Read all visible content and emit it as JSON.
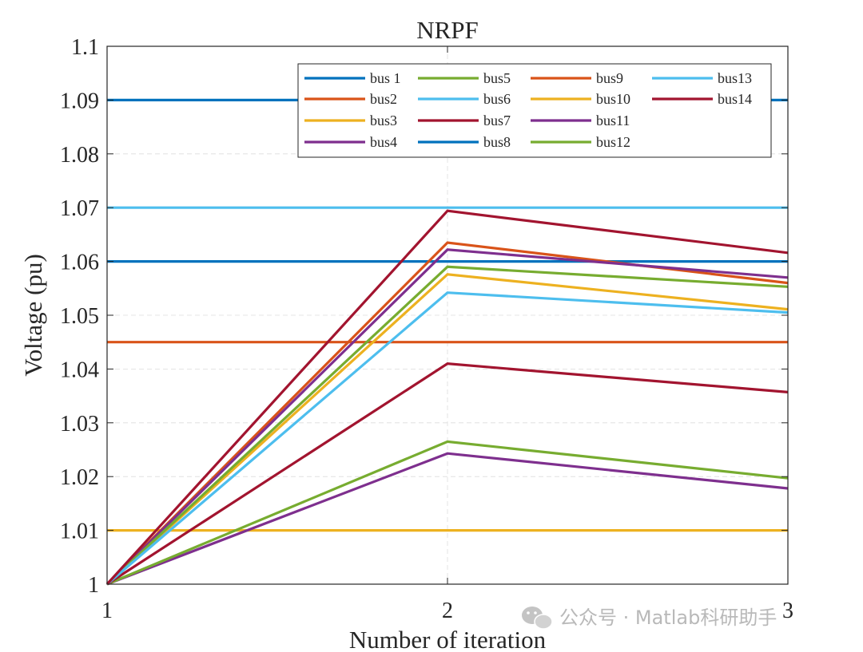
{
  "chart_data": {
    "type": "line",
    "title": "NRPF",
    "xlabel": "Number of iteration",
    "ylabel": "Voltage (pu)",
    "x": [
      1,
      2,
      3
    ],
    "xlim": [
      1,
      3
    ],
    "ylim": [
      1,
      1.1
    ],
    "xticks": [
      "1",
      "2",
      "3"
    ],
    "yticks": [
      "1",
      "1.01",
      "1.02",
      "1.03",
      "1.04",
      "1.05",
      "1.06",
      "1.07",
      "1.08",
      "1.09",
      "1.1"
    ],
    "grid": true,
    "legend_position": "top-right",
    "series": [
      {
        "name": "bus 1",
        "color": "#0072BD",
        "values": [
          1.09,
          1.09,
          1.09
        ]
      },
      {
        "name": "bus2",
        "color": "#D95319",
        "values": [
          1.045,
          1.045,
          1.045
        ]
      },
      {
        "name": "bus3",
        "color": "#EDB120",
        "values": [
          1.01,
          1.01,
          1.01
        ]
      },
      {
        "name": "bus4",
        "color": "#7E2F8E",
        "values": [
          1.0,
          1.0243,
          1.0178
        ]
      },
      {
        "name": "bus5",
        "color": "#77AC30",
        "values": [
          1.0,
          1.0265,
          1.0197
        ]
      },
      {
        "name": "bus6",
        "color": "#4DBEEE",
        "values": [
          1.07,
          1.07,
          1.07
        ]
      },
      {
        "name": "bus7",
        "color": "#A2142F",
        "values": [
          1.0,
          1.041,
          1.0357
        ]
      },
      {
        "name": "bus8",
        "color": "#0072BD",
        "values": [
          1.06,
          1.06,
          1.06
        ]
      },
      {
        "name": "bus9",
        "color": "#D95319",
        "values": [
          1.0,
          1.0635,
          1.056
        ]
      },
      {
        "name": "bus10",
        "color": "#EDB120",
        "values": [
          1.0,
          1.0576,
          1.0511
        ]
      },
      {
        "name": "bus11",
        "color": "#7E2F8E",
        "values": [
          1.0,
          1.0622,
          1.057
        ]
      },
      {
        "name": "bus12",
        "color": "#77AC30",
        "values": [
          1.0,
          1.059,
          1.0553
        ]
      },
      {
        "name": "bus13",
        "color": "#4DBEEE",
        "values": [
          1.0,
          1.0542,
          1.0505
        ]
      },
      {
        "name": "bus14",
        "color": "#A2142F",
        "values": [
          1.0,
          1.0694,
          1.0616
        ]
      }
    ]
  },
  "watermark": {
    "icon": "wechat-icon",
    "text": "公众号 · Matlab科研助手"
  }
}
